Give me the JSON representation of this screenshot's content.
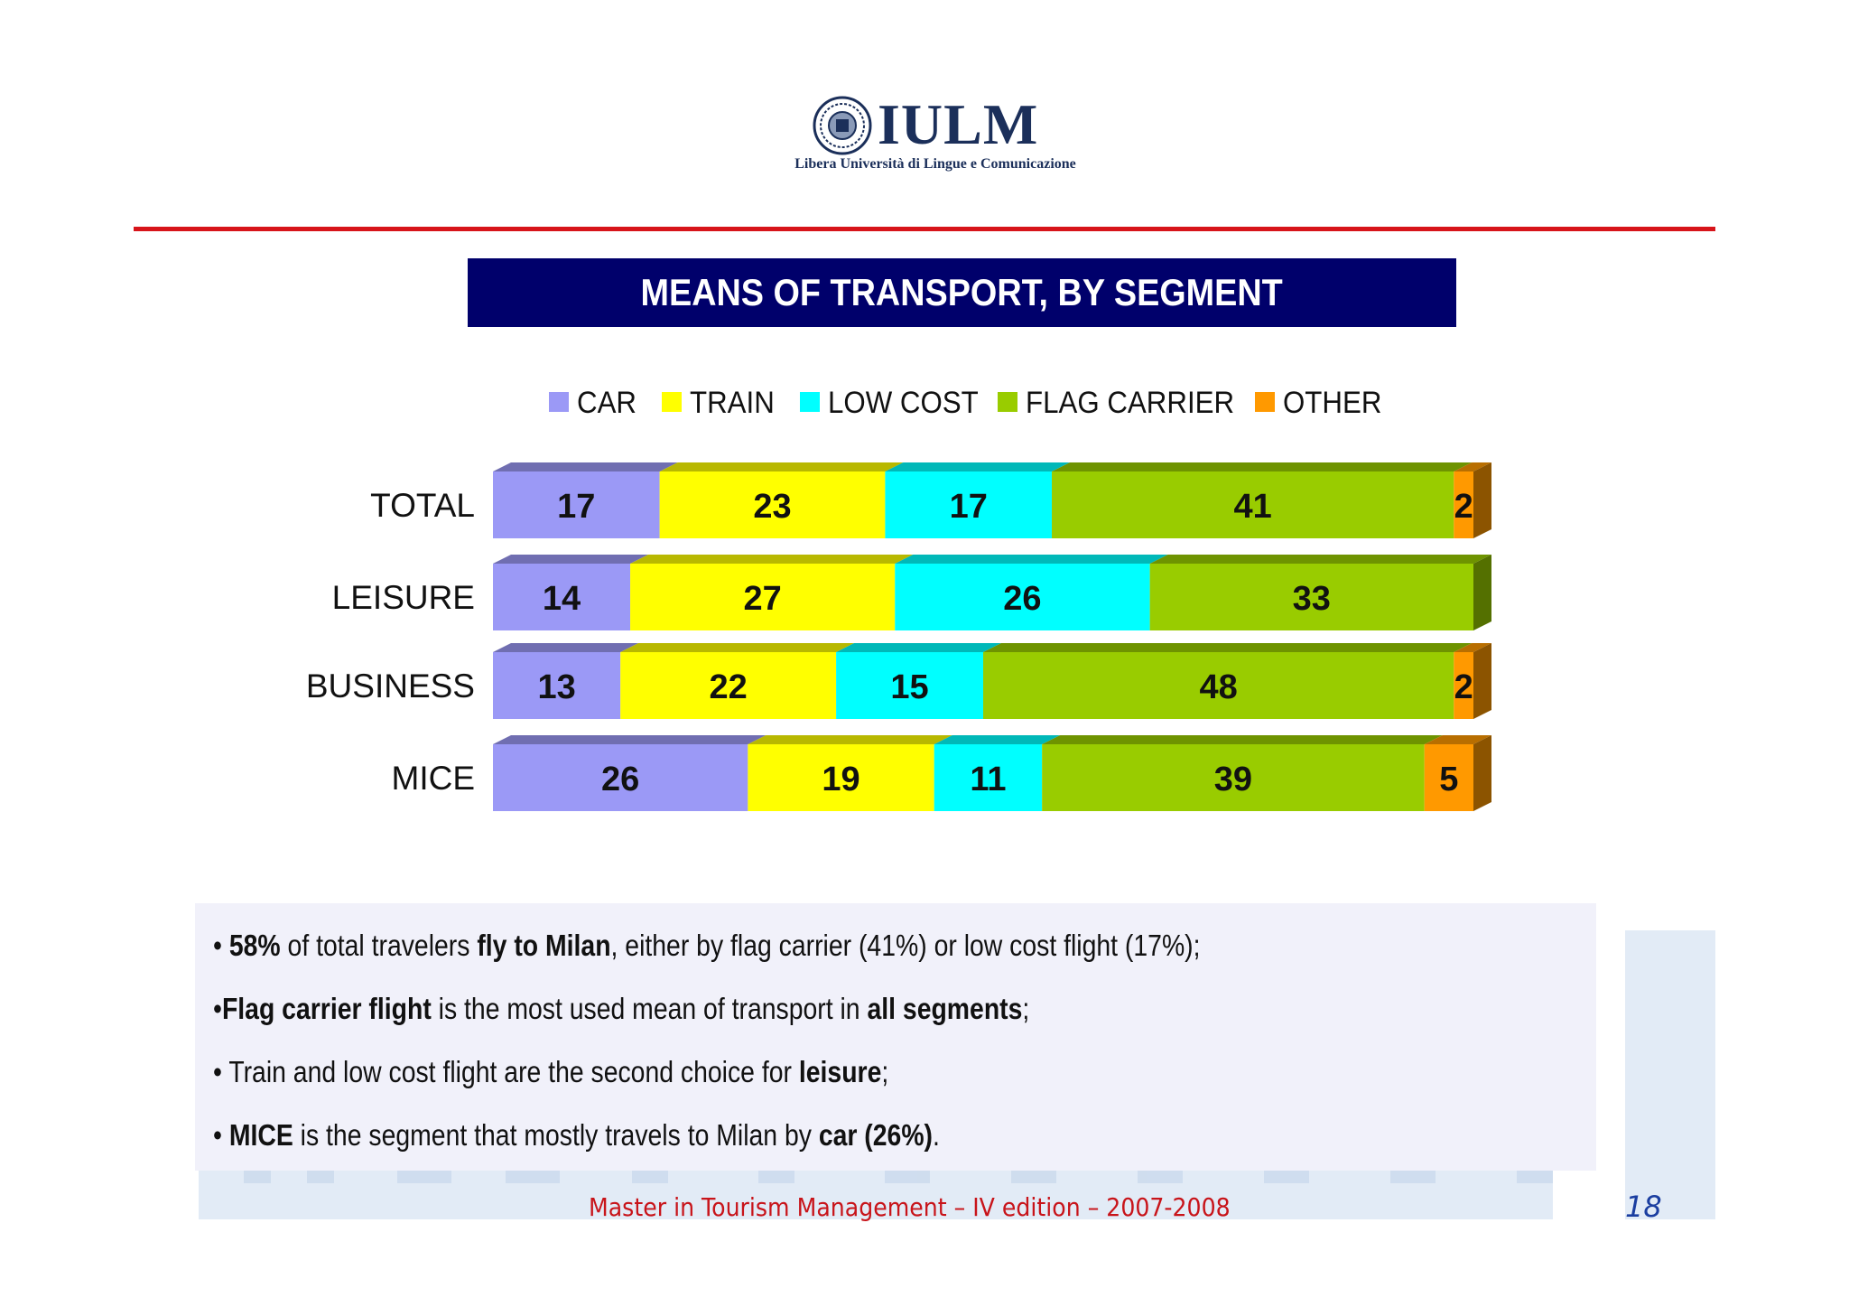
{
  "logo": {
    "wordmark": "IULM",
    "subtitle": "Libera Università di Lingue e Comunicazione"
  },
  "chart_data": {
    "type": "bar",
    "orientation": "horizontal",
    "stacked": true,
    "percent": true,
    "title": "MEANS OF TRANSPORT, BY SEGMENT",
    "categories": [
      "TOTAL",
      "LEISURE",
      "BUSINESS",
      "MICE"
    ],
    "series": [
      {
        "name": "CAR",
        "color": "#9b99f6",
        "values": [
          17,
          14,
          13,
          26
        ]
      },
      {
        "name": "TRAIN",
        "color": "#ffff00",
        "values": [
          23,
          27,
          22,
          19
        ]
      },
      {
        "name": "LOW COST",
        "color": "#00ffff",
        "values": [
          17,
          26,
          15,
          11
        ]
      },
      {
        "name": "FLAG CARRIER",
        "color": "#99cc00",
        "values": [
          41,
          33,
          48,
          39
        ]
      },
      {
        "name": "OTHER",
        "color": "#ff9900",
        "values": [
          2,
          0,
          2,
          5
        ]
      }
    ],
    "legend_position": "top",
    "xlim": [
      0,
      100
    ],
    "grid": false
  },
  "notes": {
    "n1": {
      "bullet": "• ",
      "b1": "58%",
      "t1": " of total travelers ",
      "b2": "fly to Milan",
      "t2": ", either by flag carrier (41%) or low cost flight (17%);"
    },
    "n2": {
      "bullet": "•",
      "b1": "Flag carrier flight",
      "t1": " is the most used mean of transport in ",
      "b2": "all segments",
      "t2": ";"
    },
    "n3": {
      "bullet": "• ",
      "t1": "Train and low cost flight are the second choice for ",
      "b1": "leisure",
      "t2": ";"
    },
    "n4": {
      "bullet": "• ",
      "b1": "MICE",
      "t1": " is the segment  that mostly travels to Milan by ",
      "b2": "car (26%)",
      "t2": "."
    }
  },
  "footer": {
    "text": "Master in Tourism Management – IV edition – 2007-2008",
    "page": "18"
  }
}
